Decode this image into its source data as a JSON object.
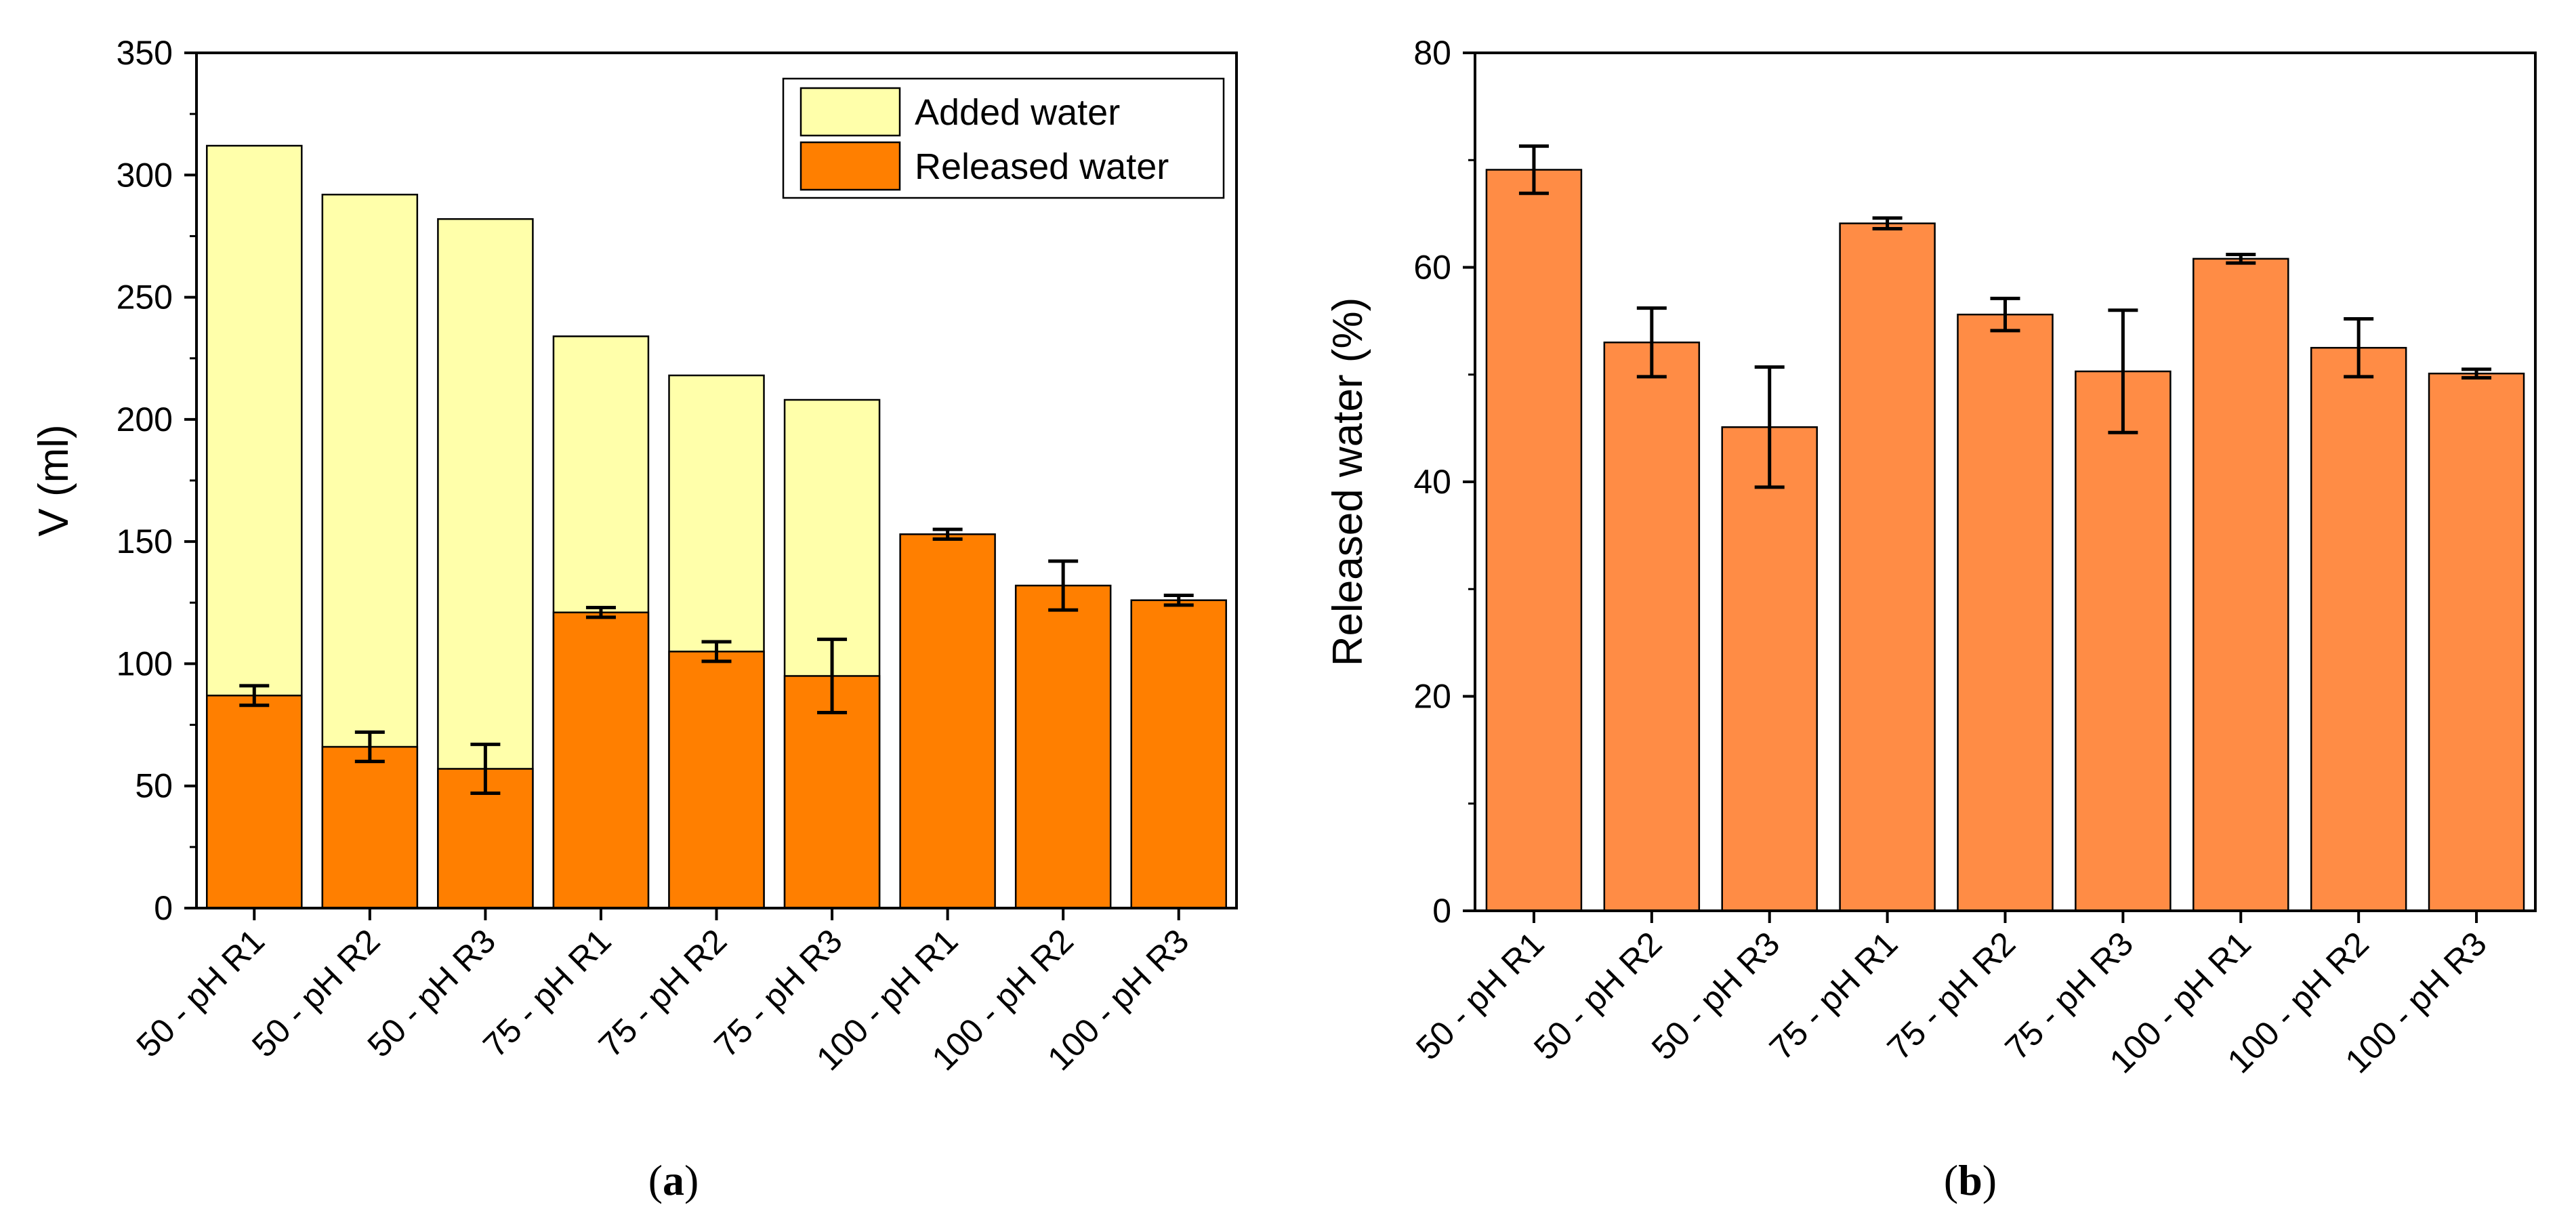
{
  "colors": {
    "added_water": "#ffffaa",
    "released_water_a": "#ff7f00",
    "released_water_b": "#ff8c45",
    "stroke": "#000000"
  },
  "chart_data": [
    {
      "type": "bar",
      "stacked": true,
      "panel_label": "a",
      "categories": [
        "50 - pH R1",
        "50 - pH R2",
        "50 - pH R3",
        "75 - pH R1",
        "75 - pH R2",
        "75 - pH R3",
        "100 - pH R1",
        "100 - pH R2",
        "100 - pH R3"
      ],
      "series": [
        {
          "name": "Released water",
          "values": [
            87,
            66,
            57,
            121,
            105,
            95,
            153,
            132,
            126
          ],
          "error": [
            4,
            6,
            10,
            2,
            4,
            15,
            2,
            10,
            2
          ]
        },
        {
          "name": "Added water",
          "total": [
            312,
            292,
            282,
            234,
            218,
            208,
            null,
            null,
            null
          ]
        }
      ],
      "xlabel": "",
      "ylabel": "V (ml)",
      "ylim": [
        0,
        350
      ],
      "yticks": [
        0,
        50,
        100,
        150,
        200,
        250,
        300,
        350
      ],
      "legend": "top-right",
      "grid": false
    },
    {
      "type": "bar",
      "panel_label": "b",
      "categories": [
        "50 - pH R1",
        "50 - pH R2",
        "50 - pH R3",
        "75 - pH R1",
        "75 - pH R2",
        "75 - pH R3",
        "100 - pH R1",
        "100 - pH R2",
        "100 - pH R3"
      ],
      "series": [
        {
          "name": "",
          "values": [
            69.1,
            53.0,
            45.1,
            64.1,
            55.6,
            50.3,
            60.8,
            52.5,
            50.1
          ],
          "error": [
            2.2,
            3.2,
            5.6,
            0.5,
            1.5,
            5.7,
            0.4,
            2.7,
            0.4
          ]
        }
      ],
      "xlabel": "",
      "ylabel": "Released water (%)",
      "ylim": [
        0,
        80
      ],
      "yticks": [
        0,
        20,
        40,
        60,
        80
      ],
      "legend": "none",
      "grid": false
    }
  ]
}
